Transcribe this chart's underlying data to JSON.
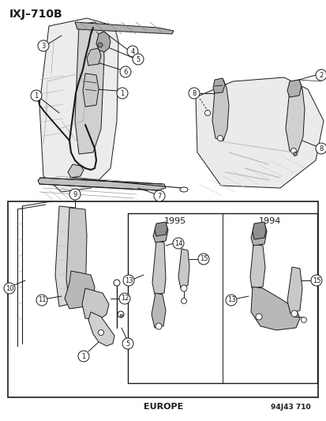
{
  "title": "IXJ–710B",
  "footer_left": "EUROPE",
  "footer_right": "94J43 710",
  "bg": "#ffffff",
  "lc": "#1a1a1a",
  "fig_w": 4.14,
  "fig_h": 5.33,
  "dpi": 100
}
